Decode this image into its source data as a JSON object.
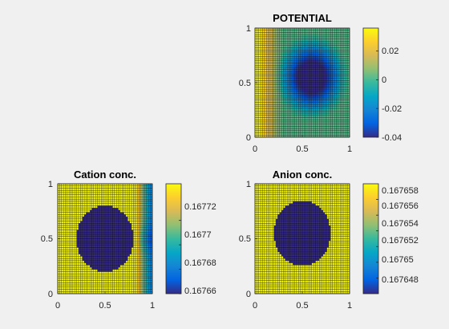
{
  "figure": {
    "background": "#f0f0f0",
    "colormap": "parula",
    "colormap_stops": [
      "#352a87",
      "#0363e1",
      "#1485d4",
      "#06a7c6",
      "#38b99e",
      "#92bf73",
      "#d9ba56",
      "#fcce2e",
      "#f9fb0e"
    ]
  },
  "chart_data": [
    {
      "type": "heatmap",
      "title": "POTENTIAL",
      "xlabel": "",
      "ylabel": "",
      "xlim": [
        0,
        1
      ],
      "ylim": [
        0,
        1
      ],
      "x_ticks": [
        "0",
        "0.5",
        "1"
      ],
      "y_ticks": [
        "0",
        "0.5",
        "1"
      ],
      "grid": "dense mesh (about 50 x 50 cells)",
      "field": "highest along left edge (x=0); a circular minimum centred near (0.6, 0.55) of radius ~0.35; intermediate values between",
      "colorbar": {
        "range": [
          -0.04,
          0.036
        ],
        "ticks": [
          "-0.04",
          "-0.02",
          "0",
          "0.02"
        ]
      }
    },
    {
      "type": "heatmap",
      "title": "Cation conc.",
      "xlabel": "",
      "ylabel": "",
      "xlim": [
        0,
        1
      ],
      "ylim": [
        0,
        1
      ],
      "x_ticks": [
        "0",
        "0.5",
        "1"
      ],
      "y_ticks": [
        "0",
        "0.5",
        "1"
      ],
      "grid": "dense mesh (about 50 x 50 cells)",
      "field": "maximum over most of the domain; a circular minimum centred near (0.5, 0.5) of radius ~0.3; values decrease toward the right edge (x=1)",
      "colorbar": {
        "range": [
          0.16766,
          0.16775
        ],
        "ticks": [
          "0.16766",
          "0.16768",
          "0.1677",
          "0.16772"
        ]
      }
    },
    {
      "type": "heatmap",
      "title": "Anion conc.",
      "xlabel": "",
      "ylabel": "",
      "xlim": [
        0,
        1
      ],
      "ylim": [
        0,
        1
      ],
      "x_ticks": [
        "0",
        "0.5",
        "1"
      ],
      "y_ticks": [
        "0",
        "0.5",
        "1"
      ],
      "grid": "dense mesh (about 50 x 50 cells)",
      "field": "uniform maximum everywhere except a circular minimum centred near (0.5, 0.55) of radius ~0.3",
      "colorbar": {
        "range": [
          0.167646,
          0.16766
        ],
        "ticks": [
          "0.167648",
          "0.16765",
          "0.167652",
          "0.167654",
          "0.167656",
          "0.167658"
        ]
      }
    }
  ]
}
